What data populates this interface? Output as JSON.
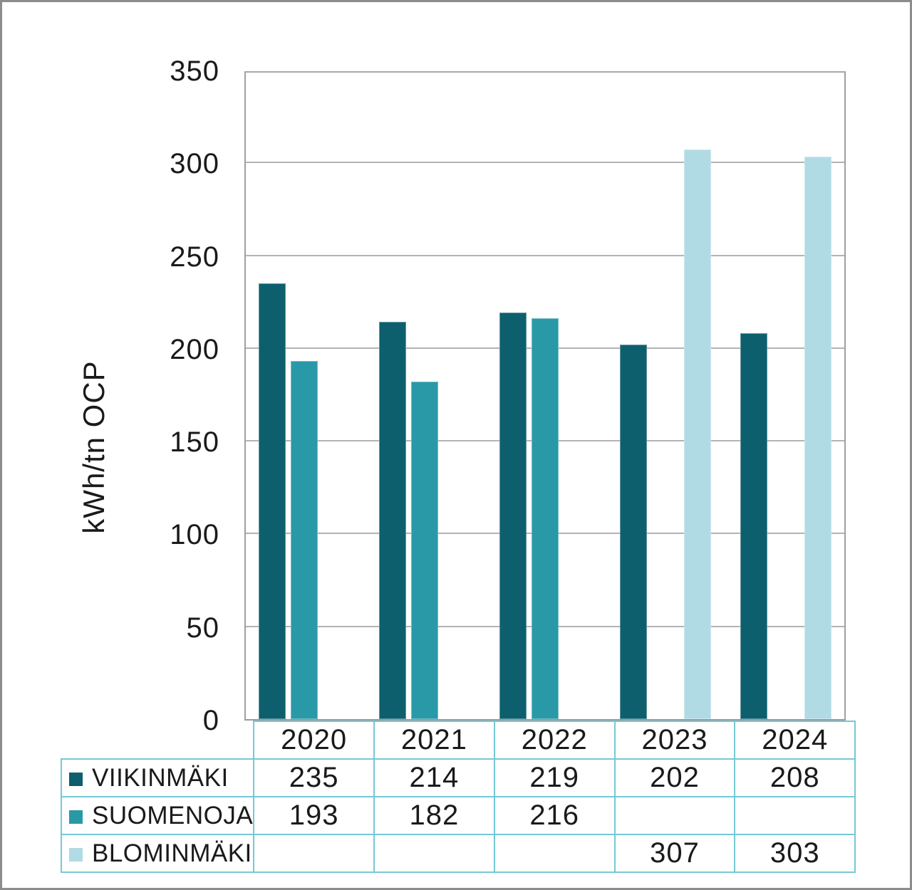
{
  "colors": {
    "viikinmaki": "#0d5f6d",
    "suomenoja": "#2999a8",
    "blominmaki": "#b1dbe4",
    "gridline": "#b3b3b3",
    "axis": "#9a9a9a",
    "table_border": "#74c9d6",
    "text": "#1a1a1a",
    "frame": "#8c8c8c"
  },
  "chart_data": {
    "type": "bar",
    "categories": [
      "2020",
      "2021",
      "2022",
      "2023",
      "2024"
    ],
    "series": [
      {
        "name": "VIIKINMÄKI",
        "color_key": "viikinmaki",
        "values": [
          235,
          214,
          219,
          202,
          208
        ]
      },
      {
        "name": "SUOMENOJA",
        "color_key": "suomenoja",
        "values": [
          193,
          182,
          216,
          null,
          null
        ]
      },
      {
        "name": "BLOMINMÄKI",
        "color_key": "blominmaki",
        "values": [
          null,
          null,
          null,
          307,
          303
        ]
      }
    ],
    "title": "",
    "xlabel": "",
    "ylabel": "kWh/tn OCP",
    "ylim": [
      0,
      350
    ],
    "ytick_step": 50,
    "yticks": [
      "0",
      "50",
      "100",
      "150",
      "200",
      "250",
      "300",
      "350"
    ],
    "grid": "horizontal",
    "legend_position": "table-left-column"
  }
}
